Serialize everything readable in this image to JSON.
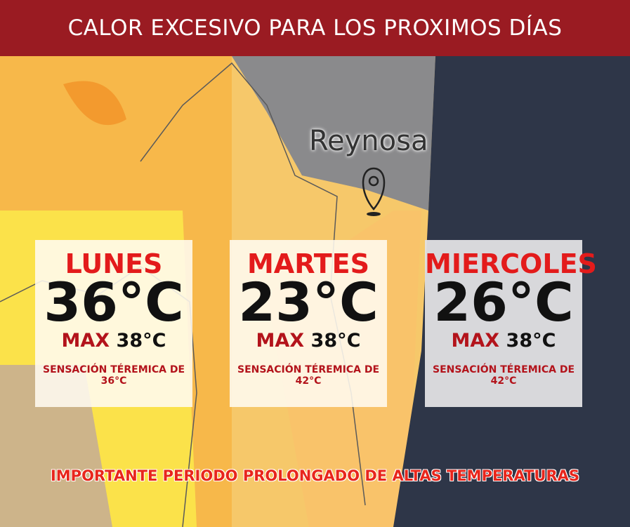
{
  "header": {
    "title": "CALOR EXCESIVO PARA LOS PROXIMOS DÍAS"
  },
  "map": {
    "city": "Reynosa"
  },
  "cards": [
    {
      "day": "LUNES",
      "temp": "36°C",
      "max_label": "MAX",
      "max": "38°C",
      "feels": "SENSACIÓN TÉREMICA DE 36°C"
    },
    {
      "day": "MARTES",
      "temp": "23°C",
      "max_label": "MAX",
      "max": "38°C",
      "feels": "SENSACIÓN TÉREMICA DE 42°C"
    },
    {
      "day": "MIERCOLES",
      "temp": "26°C",
      "max_label": "MAX",
      "max": "38°C",
      "feels": "SENSACIÓN TÉREMICA DE 42°C"
    }
  ],
  "footer": {
    "note": "IMPORTANTE PERIODO PROLONGADO DE ALTAS TEMPERATURAS"
  }
}
